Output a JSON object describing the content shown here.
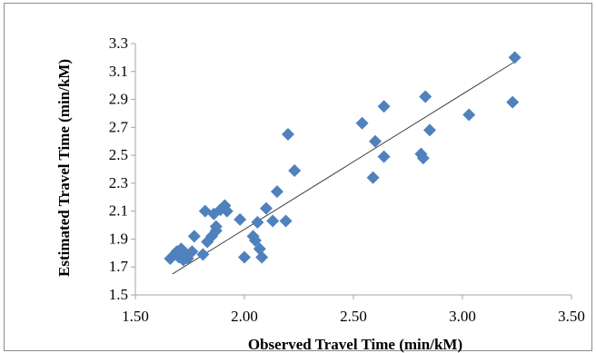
{
  "chart_data": {
    "type": "scatter",
    "xlabel": "Observed Travel Time (min/kM)",
    "ylabel": "Estimated Travel Time (min/kM)",
    "xlim": [
      1.5,
      3.5
    ],
    "ylim": [
      1.5,
      3.3
    ],
    "x_ticks": [
      "1.50",
      "2.00",
      "2.50",
      "3.00",
      "3.50"
    ],
    "y_ticks": [
      "1.5",
      "1.7",
      "1.9",
      "2.1",
      "2.3",
      "2.5",
      "2.7",
      "2.9",
      "3.1",
      "3.3"
    ],
    "x_tick_values": [
      1.5,
      2.0,
      2.5,
      3.0,
      3.5
    ],
    "y_tick_values": [
      1.5,
      1.7,
      1.9,
      2.1,
      2.3,
      2.5,
      2.7,
      2.9,
      3.1,
      3.3
    ],
    "grid": false,
    "marker": "diamond",
    "marker_color": "#4f81bd",
    "trendline": {
      "x": [
        1.67,
        3.24
      ],
      "y": [
        1.65,
        3.17
      ],
      "color": "#404040"
    },
    "points": [
      {
        "x": 1.66,
        "y": 1.76
      },
      {
        "x": 1.68,
        "y": 1.79
      },
      {
        "x": 1.69,
        "y": 1.81
      },
      {
        "x": 1.7,
        "y": 1.77
      },
      {
        "x": 1.71,
        "y": 1.83
      },
      {
        "x": 1.72,
        "y": 1.75
      },
      {
        "x": 1.73,
        "y": 1.8
      },
      {
        "x": 1.74,
        "y": 1.76
      },
      {
        "x": 1.76,
        "y": 1.81
      },
      {
        "x": 1.77,
        "y": 1.92
      },
      {
        "x": 1.81,
        "y": 1.79
      },
      {
        "x": 1.82,
        "y": 2.1
      },
      {
        "x": 1.83,
        "y": 1.88
      },
      {
        "x": 1.85,
        "y": 1.92
      },
      {
        "x": 1.86,
        "y": 2.08
      },
      {
        "x": 1.87,
        "y": 1.96
      },
      {
        "x": 1.87,
        "y": 1.99
      },
      {
        "x": 1.89,
        "y": 2.11
      },
      {
        "x": 1.91,
        "y": 2.14
      },
      {
        "x": 1.92,
        "y": 2.1
      },
      {
        "x": 1.98,
        "y": 2.04
      },
      {
        "x": 2.0,
        "y": 1.77
      },
      {
        "x": 2.04,
        "y": 1.92
      },
      {
        "x": 2.05,
        "y": 1.89
      },
      {
        "x": 2.06,
        "y": 2.02
      },
      {
        "x": 2.07,
        "y": 1.83
      },
      {
        "x": 2.08,
        "y": 1.77
      },
      {
        "x": 2.1,
        "y": 2.12
      },
      {
        "x": 2.13,
        "y": 2.03
      },
      {
        "x": 2.15,
        "y": 2.24
      },
      {
        "x": 2.19,
        "y": 2.03
      },
      {
        "x": 2.2,
        "y": 2.65
      },
      {
        "x": 2.23,
        "y": 2.39
      },
      {
        "x": 2.54,
        "y": 2.73
      },
      {
        "x": 2.59,
        "y": 2.34
      },
      {
        "x": 2.6,
        "y": 2.6
      },
      {
        "x": 2.64,
        "y": 2.49
      },
      {
        "x": 2.64,
        "y": 2.85
      },
      {
        "x": 2.81,
        "y": 2.51
      },
      {
        "x": 2.82,
        "y": 2.48
      },
      {
        "x": 2.83,
        "y": 2.92
      },
      {
        "x": 2.85,
        "y": 2.68
      },
      {
        "x": 3.03,
        "y": 2.79
      },
      {
        "x": 3.23,
        "y": 2.88
      },
      {
        "x": 3.24,
        "y": 3.2
      }
    ]
  }
}
